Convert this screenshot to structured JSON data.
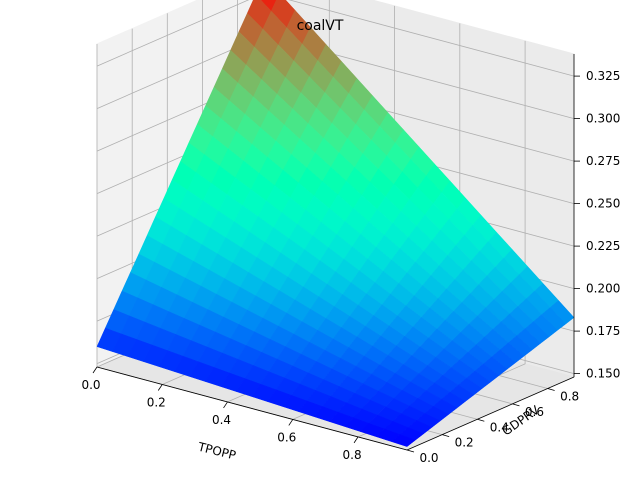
{
  "chart_data": {
    "type": "surface3d",
    "title": "coalVT",
    "xlabel": "TPOPP",
    "ylabel": "GDPRV",
    "zlabel": "",
    "x_ticks": [
      "0.0",
      "0.2",
      "0.4",
      "0.6",
      "0.8"
    ],
    "y_ticks": [
      "0.0",
      "0.2",
      "0.4",
      "0.6",
      "0.8"
    ],
    "z_ticks": [
      "0.150",
      "0.175",
      "0.200",
      "0.225",
      "0.250",
      "0.275",
      "0.300",
      "0.325"
    ],
    "xlim": [
      0.0,
      0.95
    ],
    "ylim": [
      0.0,
      0.95
    ],
    "zlim": [
      0.148,
      0.338
    ],
    "surface": {
      "x_range": [
        0.0,
        0.95
      ],
      "y_range": [
        0.0,
        0.95
      ],
      "grid_size": 20,
      "corners": {
        "x0_y0": 0.16,
        "x1_y0": 0.15,
        "x0_y1": 0.335,
        "x1_y1": 0.183
      },
      "colormap": "rainbow"
    },
    "grid": true
  }
}
